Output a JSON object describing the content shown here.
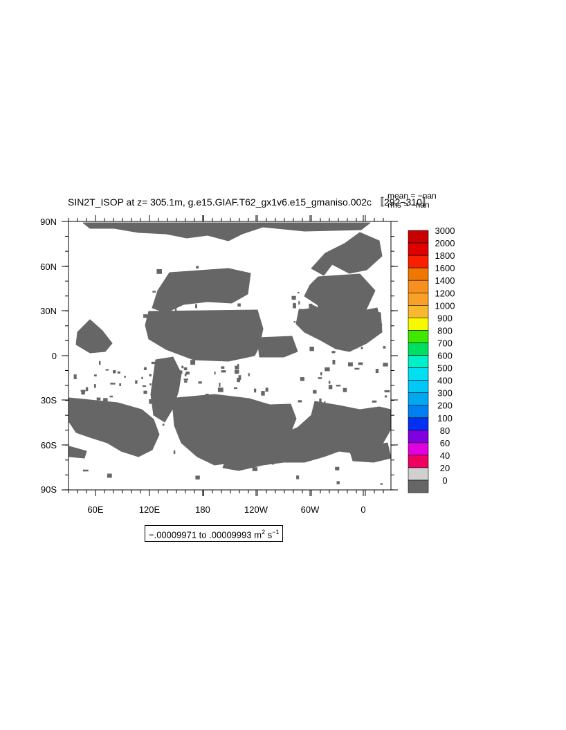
{
  "title": "SIN2T_ISOP at z= 305.1m, g.e15.GIAF.T62_gx1v6.e15_gmaniso.002c 〚292−310〛",
  "stats": {
    "mean": "mean = −nan",
    "rms": "rms = −nan"
  },
  "y_ticks": [
    "90N",
    "60N",
    "30N",
    "0",
    "30S",
    "60S",
    "90S"
  ],
  "x_ticks": [
    "60E",
    "120E",
    "180",
    "120W",
    "60W",
    "0"
  ],
  "range": {
    "from": "−.00009971",
    "to_word": "to",
    "to": ".00009993",
    "units": "m",
    "units_exp": "2",
    "units2": "s",
    "units2_exp": "−1"
  },
  "colorbar": {
    "labels": [
      "3000",
      "2000",
      "1800",
      "1600",
      "1400",
      "1200",
      "1000",
      "900",
      "800",
      "700",
      "600",
      "500",
      "400",
      "300",
      "200",
      "100",
      "80",
      "60",
      "40",
      "20",
      "0"
    ],
    "colors": [
      "#c80000",
      "#e00000",
      "#f82000",
      "#f07800",
      "#f89020",
      "#f8a028",
      "#f8b830",
      "#f8f800",
      "#40e800",
      "#00e060",
      "#00f0c8",
      "#00e0f0",
      "#00c8f8",
      "#00a8f0",
      "#0080f0",
      "#0030f0",
      "#8000e0",
      "#e000e0",
      "#f00060",
      "#d0d0d0",
      "#666666"
    ]
  },
  "map": {
    "fill_color": "#666666"
  }
}
